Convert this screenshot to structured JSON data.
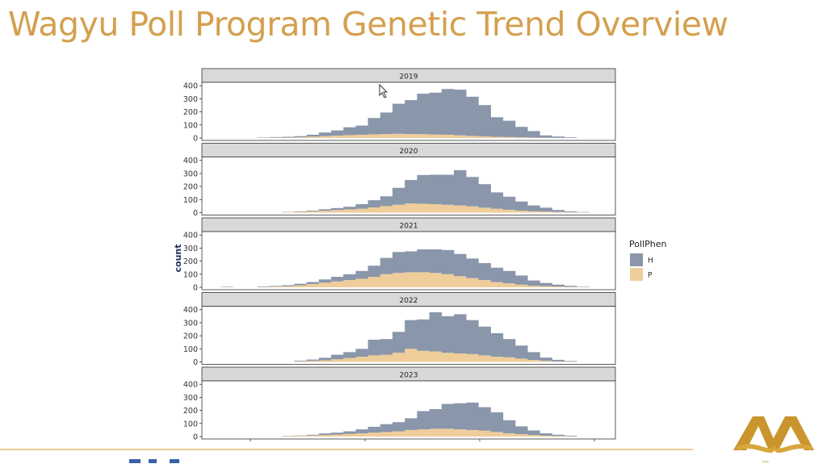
{
  "slide": {
    "title": "Wagyu Poll Program Genetic Trend Overview",
    "logo_subtext": "…",
    "colors": {
      "title": "#d4a04e",
      "footer_rule": "#e6cf95",
      "logo": "#c9952c"
    }
  },
  "chart_data": {
    "type": "bar",
    "subtype": "faceted stacked histogram",
    "ylabel": "count",
    "xlabel": "",
    "ylim": [
      0,
      420
    ],
    "yticks": [
      0,
      100,
      200,
      300,
      400
    ],
    "legend": {
      "title": "PollPhen",
      "placement": "right",
      "entries": [
        {
          "label": "H",
          "color": "#8a96aa"
        },
        {
          "label": "P",
          "color": "#efcd9a"
        }
      ]
    },
    "bins": 32,
    "facets": [
      {
        "label": "2019",
        "series": [
          {
            "name": "H",
            "values": [
              0,
              0,
              0,
              0,
              3,
              5,
              6,
              8,
              15,
              28,
              40,
              60,
              70,
              125,
              165,
              230,
              260,
              310,
              320,
              350,
              350,
              300,
              240,
              150,
              125,
              80,
              50,
              18,
              10,
              5,
              0,
              0
            ]
          },
          {
            "name": "P",
            "values": [
              0,
              0,
              0,
              0,
              1,
              2,
              3,
              6,
              10,
              14,
              18,
              22,
              25,
              28,
              30,
              32,
              30,
              29,
              27,
              25,
              20,
              16,
              12,
              9,
              7,
              5,
              3,
              2,
              1,
              0,
              0,
              0
            ]
          }
        ]
      },
      {
        "label": "2020",
        "series": [
          {
            "name": "H",
            "values": [
              0,
              0,
              0,
              0,
              0,
              0,
              2,
              4,
              6,
              12,
              15,
              20,
              35,
              55,
              75,
              130,
              180,
              220,
              225,
              230,
              270,
              225,
              180,
              125,
              100,
              70,
              45,
              30,
              15,
              6,
              3,
              0
            ]
          },
          {
            "name": "P",
            "values": [
              0,
              0,
              0,
              0,
              0,
              0,
              3,
              6,
              10,
              14,
              20,
              25,
              30,
              40,
              50,
              60,
              70,
              68,
              65,
              60,
              55,
              48,
              38,
              30,
              22,
              15,
              10,
              8,
              5,
              3,
              2,
              0
            ]
          }
        ]
      },
      {
        "label": "2021",
        "series": [
          {
            "name": "H",
            "values": [
              0,
              3,
              0,
              0,
              4,
              5,
              8,
              12,
              15,
              25,
              35,
              45,
              60,
              85,
              125,
              160,
              160,
              175,
              180,
              185,
              170,
              150,
              130,
              110,
              95,
              70,
              40,
              25,
              15,
              8,
              3,
              0
            ]
          },
          {
            "name": "P",
            "values": [
              0,
              2,
              0,
              0,
              3,
              5,
              8,
              15,
              25,
              35,
              45,
              55,
              65,
              80,
              100,
              110,
              115,
              115,
              110,
              100,
              85,
              70,
              55,
              40,
              30,
              20,
              12,
              8,
              5,
              3,
              2,
              0
            ]
          }
        ]
      },
      {
        "label": "2022",
        "series": [
          {
            "name": "H",
            "values": [
              0,
              0,
              0,
              0,
              0,
              0,
              0,
              5,
              10,
              20,
              35,
              45,
              60,
              120,
              120,
              160,
              220,
              240,
              300,
              280,
              300,
              260,
              220,
              180,
              140,
              100,
              60,
              25,
              12,
              5,
              0,
              0
            ]
          },
          {
            "name": "P",
            "values": [
              0,
              0,
              0,
              0,
              0,
              0,
              0,
              5,
              8,
              12,
              20,
              30,
              40,
              50,
              55,
              70,
              100,
              85,
              80,
              70,
              65,
              60,
              50,
              40,
              35,
              25,
              15,
              8,
              4,
              2,
              0,
              0
            ]
          }
        ]
      },
      {
        "label": "2023",
        "series": [
          {
            "name": "H",
            "values": [
              0,
              0,
              0,
              0,
              0,
              0,
              2,
              3,
              6,
              12,
              15,
              20,
              30,
              45,
              60,
              70,
              90,
              140,
              150,
              190,
              200,
              210,
              180,
              150,
              100,
              60,
              35,
              18,
              10,
              5,
              0,
              0
            ]
          },
          {
            "name": "P",
            "values": [
              0,
              0,
              0,
              0,
              0,
              0,
              3,
              5,
              8,
              12,
              15,
              20,
              25,
              30,
              35,
              40,
              50,
              55,
              60,
              60,
              55,
              50,
              45,
              35,
              25,
              18,
              12,
              7,
              4,
              2,
              0,
              0
            ]
          }
        ]
      }
    ]
  }
}
